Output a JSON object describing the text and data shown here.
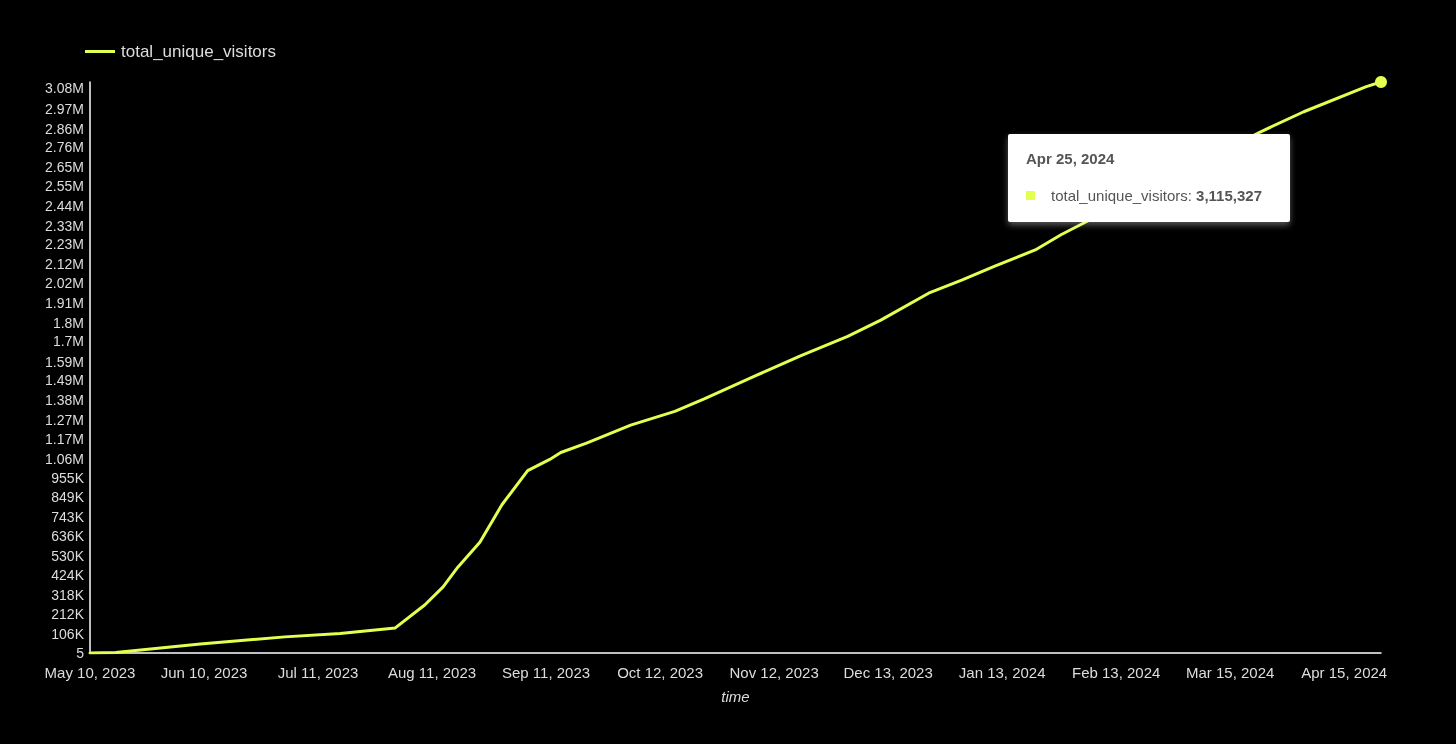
{
  "chart_data": {
    "type": "line",
    "xlabel": "time",
    "x": [
      "2023-05-10",
      "2023-05-17",
      "2023-06-09",
      "2023-07-02",
      "2023-07-17",
      "2023-08-01",
      "2023-08-09",
      "2023-08-14",
      "2023-08-18",
      "2023-08-24",
      "2023-08-28",
      "2023-08-30",
      "2023-09-06",
      "2023-09-12",
      "2023-09-15",
      "2023-09-22",
      "2023-10-04",
      "2023-10-16",
      "2023-10-24",
      "2023-11-07",
      "2023-11-19",
      "2023-12-02",
      "2023-12-11",
      "2023-12-24",
      "2024-01-02",
      "2024-01-11",
      "2024-01-22",
      "2024-01-29",
      "2024-03-23",
      "2024-04-04",
      "2024-04-21",
      "2024-04-25"
    ],
    "series": [
      {
        "name": "total_unique_visitors",
        "color": "#e4ff4f",
        "values": [
          5,
          3000,
          49000,
          88000,
          107000,
          137000,
          262000,
          361000,
          468000,
          604000,
          741000,
          809000,
          995000,
          1056000,
          1094000,
          1145000,
          1243000,
          1318000,
          1386000,
          1513000,
          1620000,
          1728000,
          1816000,
          1963000,
          2034000,
          2111000,
          2199000,
          2282000,
          2841000,
          2953000,
          3090000,
          3115327
        ]
      }
    ],
    "xlim": [
      "2023-05-10",
      "2024-04-25"
    ],
    "xticks": [
      {
        "value": "2023-05-10",
        "label": "May 10, 2023"
      },
      {
        "value": "2023-06-10",
        "label": "Jun 10, 2023"
      },
      {
        "value": "2023-07-11",
        "label": "Jul 11, 2023"
      },
      {
        "value": "2023-08-11",
        "label": "Aug 11, 2023"
      },
      {
        "value": "2023-09-11",
        "label": "Sep 11, 2023"
      },
      {
        "value": "2023-10-12",
        "label": "Oct 12, 2023"
      },
      {
        "value": "2023-11-12",
        "label": "Nov 12, 2023"
      },
      {
        "value": "2023-12-13",
        "label": "Dec 13, 2023"
      },
      {
        "value": "2024-01-13",
        "label": "Jan 13, 2024"
      },
      {
        "value": "2024-02-13",
        "label": "Feb 13, 2024"
      },
      {
        "value": "2024-03-15",
        "label": "Mar 15, 2024"
      },
      {
        "value": "2024-04-15",
        "label": "Apr 15, 2024"
      }
    ],
    "ylim": [
      5,
      3115327
    ],
    "yticks": [
      5,
      {
        "value": 106000,
        "label": "106K"
      },
      {
        "value": 212000,
        "label": "212K"
      },
      {
        "value": 318000,
        "label": "318K"
      },
      {
        "value": 424000,
        "label": "424K"
      },
      {
        "value": 530000,
        "label": "530K"
      },
      {
        "value": 636000,
        "label": "636K"
      },
      {
        "value": 743000,
        "label": "743K"
      },
      {
        "value": 849000,
        "label": "849K"
      },
      {
        "value": 955000,
        "label": "955K"
      },
      {
        "value": 1060000,
        "label": "1.06M"
      },
      {
        "value": 1170000,
        "label": "1.17M"
      },
      {
        "value": 1270000,
        "label": "1.27M"
      },
      {
        "value": 1380000,
        "label": "1.38M"
      },
      {
        "value": 1490000,
        "label": "1.49M"
      },
      {
        "value": 1590000,
        "label": "1.59M"
      },
      {
        "value": 1700000,
        "label": "1.7M"
      },
      {
        "value": 1800000,
        "label": "1.8M"
      },
      {
        "value": 1910000,
        "label": "1.91M"
      },
      {
        "value": 2020000,
        "label": "2.02M"
      },
      {
        "value": 2120000,
        "label": "2.12M"
      },
      {
        "value": 2230000,
        "label": "2.23M"
      },
      {
        "value": 2330000,
        "label": "2.33M"
      },
      {
        "value": 2440000,
        "label": "2.44M"
      },
      {
        "value": 2550000,
        "label": "2.55M"
      },
      {
        "value": 2650000,
        "label": "2.65M"
      },
      {
        "value": 2760000,
        "label": "2.76M"
      },
      {
        "value": 2860000,
        "label": "2.86M"
      },
      {
        "value": 2970000,
        "label": "2.97M"
      },
      {
        "value": 3080000,
        "label": "3.08M"
      }
    ],
    "annotations": [
      "Apr 25, 2024",
      "total_unique_visitors: 3,115,327"
    ],
    "grid": false,
    "legend": "top left",
    "marker": "none",
    "line_style": "solid"
  }
}
